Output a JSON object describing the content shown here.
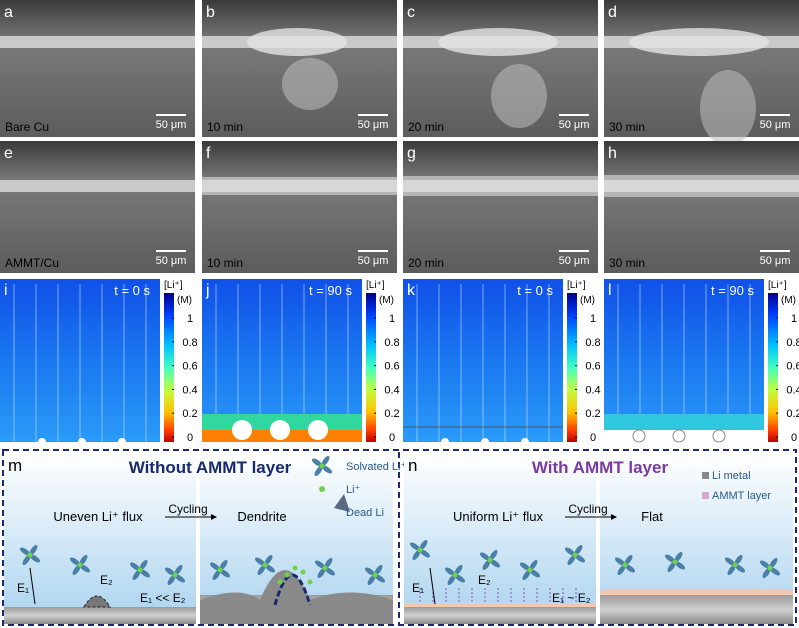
{
  "micrographs": [
    {
      "letter": "a",
      "caption": "Bare Cu",
      "scale_bar": "50 μm"
    },
    {
      "letter": "b",
      "caption": "10 min",
      "scale_bar": "50 μm"
    },
    {
      "letter": "c",
      "caption": "20 min",
      "scale_bar": "50 μm"
    },
    {
      "letter": "d",
      "caption": "30 min",
      "scale_bar": "50 μm"
    },
    {
      "letter": "e",
      "caption": "AMMT/Cu",
      "scale_bar": "50 μm"
    },
    {
      "letter": "f",
      "caption": "10 min",
      "scale_bar": "50 μm"
    },
    {
      "letter": "g",
      "caption": "20 min",
      "scale_bar": "50 μm"
    },
    {
      "letter": "h",
      "caption": "30 min",
      "scale_bar": "50 μm"
    }
  ],
  "simulations": [
    {
      "letter": "i",
      "time": "t = 0 s",
      "colorbar_title": "[Li⁺]",
      "colorbar_unit": "(M)",
      "colorbar_ticks": [
        "1",
        "0.8",
        "0.6",
        "0.4",
        "0.2",
        "0"
      ]
    },
    {
      "letter": "j",
      "time": "t = 90 s",
      "colorbar_title": "[Li⁺]",
      "colorbar_unit": "(M)",
      "colorbar_ticks": [
        "1",
        "0.8",
        "0.6",
        "0.4",
        "0.2",
        "0"
      ]
    },
    {
      "letter": "k",
      "time": "t = 0 s",
      "colorbar_title": "[Li⁺]",
      "colorbar_unit": "(M)",
      "colorbar_ticks": [
        "1",
        "0.8",
        "0.6",
        "0.4",
        "0.2",
        "0"
      ]
    },
    {
      "letter": "l",
      "time": "t = 90 s",
      "colorbar_title": "[Li⁺]",
      "colorbar_unit": "(M)",
      "colorbar_ticks": [
        "1",
        "0.8",
        "0.6",
        "0.4",
        "0.2",
        "0"
      ]
    }
  ],
  "schematic_m": {
    "letter": "m",
    "title": "Without AMMT layer",
    "legend": [
      "Solvated Li⁺",
      "Li⁺",
      "Dead Li"
    ],
    "before": "Uneven Li⁺ flux",
    "arrow": "Cycling",
    "after": "Dendrite",
    "e1": "E₁",
    "e2": "E₂",
    "relation": "E₁ << E₂"
  },
  "schematic_n": {
    "letter": "n",
    "title": "With AMMT layer",
    "legend": [
      "Li metal",
      "AMMT layer"
    ],
    "before": "Uniform Li⁺ flux",
    "arrow": "Cycling",
    "after": "Flat",
    "e1": "E₁",
    "e2": "E₂",
    "relation": "E₁ ~ E₂"
  }
}
